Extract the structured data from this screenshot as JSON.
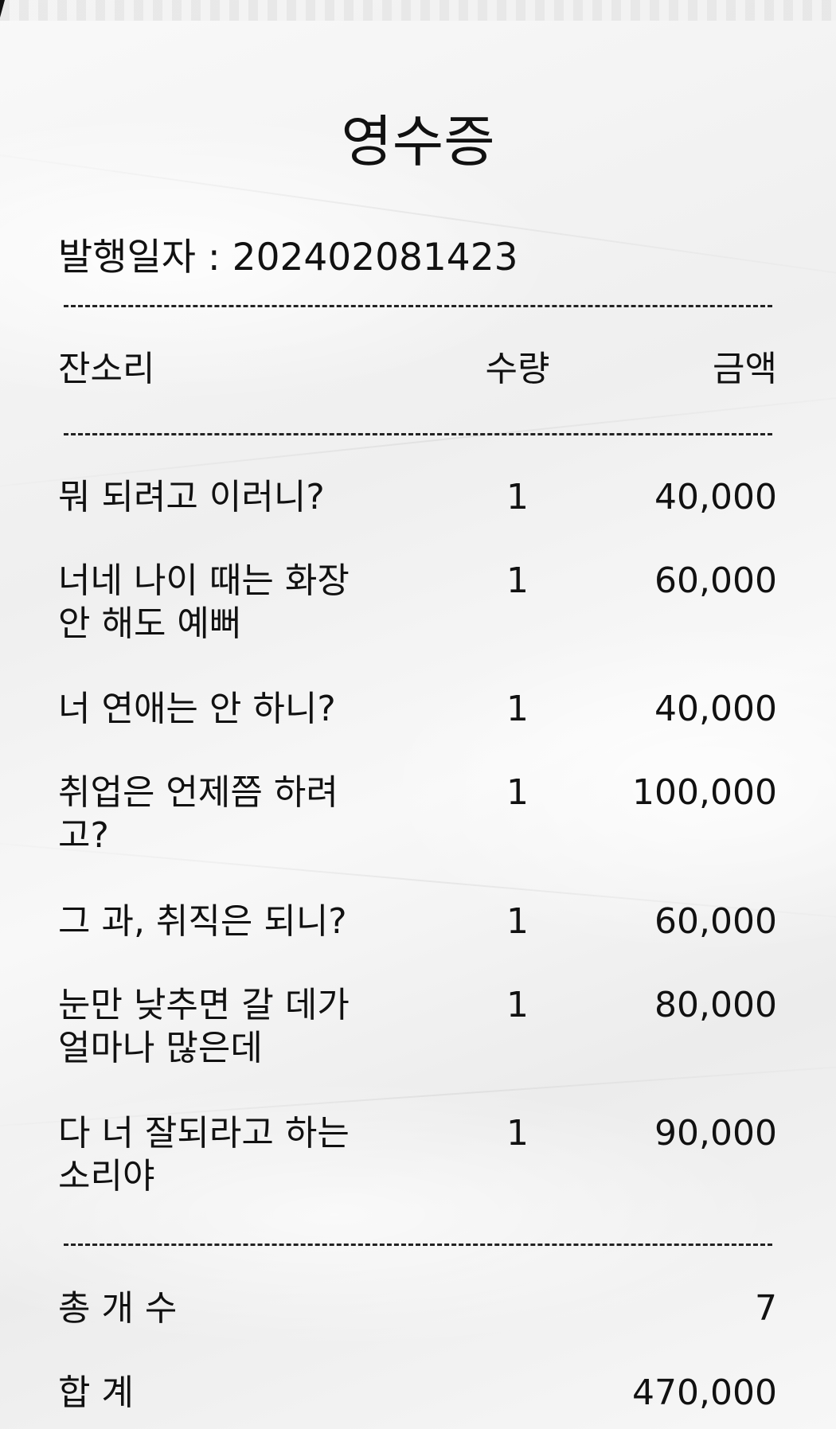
{
  "receipt": {
    "title": "영수증",
    "issue_date": "발행일자 : 202402081423",
    "columns": {
      "item": "잔소리",
      "quantity": "수량",
      "amount": "금액"
    },
    "items": [
      {
        "name": "뭐 되려고 이러니?",
        "qty": "1",
        "amount": "40,000"
      },
      {
        "name": "너네 나이 때는 화장 안 해도 예뻐",
        "qty": "1",
        "amount": "60,000"
      },
      {
        "name": "너 연애는 안 하니?",
        "qty": "1",
        "amount": "40,000"
      },
      {
        "name": "취업은 언제쯤 하려고?",
        "qty": "1",
        "amount": "100,000"
      },
      {
        "name": "그 과, 취직은 되니?",
        "qty": "1",
        "amount": "60,000"
      },
      {
        "name": "눈만 낮추면 갈 데가 얼마나 많은데",
        "qty": "1",
        "amount": "80,000"
      },
      {
        "name": "다 너 잘되라고 하는 소리야",
        "qty": "1",
        "amount": "90,000"
      }
    ],
    "summary": {
      "count_label": "총 개 수",
      "count_value": "7",
      "total_label": "합 계",
      "total_value": "470,000"
    }
  }
}
